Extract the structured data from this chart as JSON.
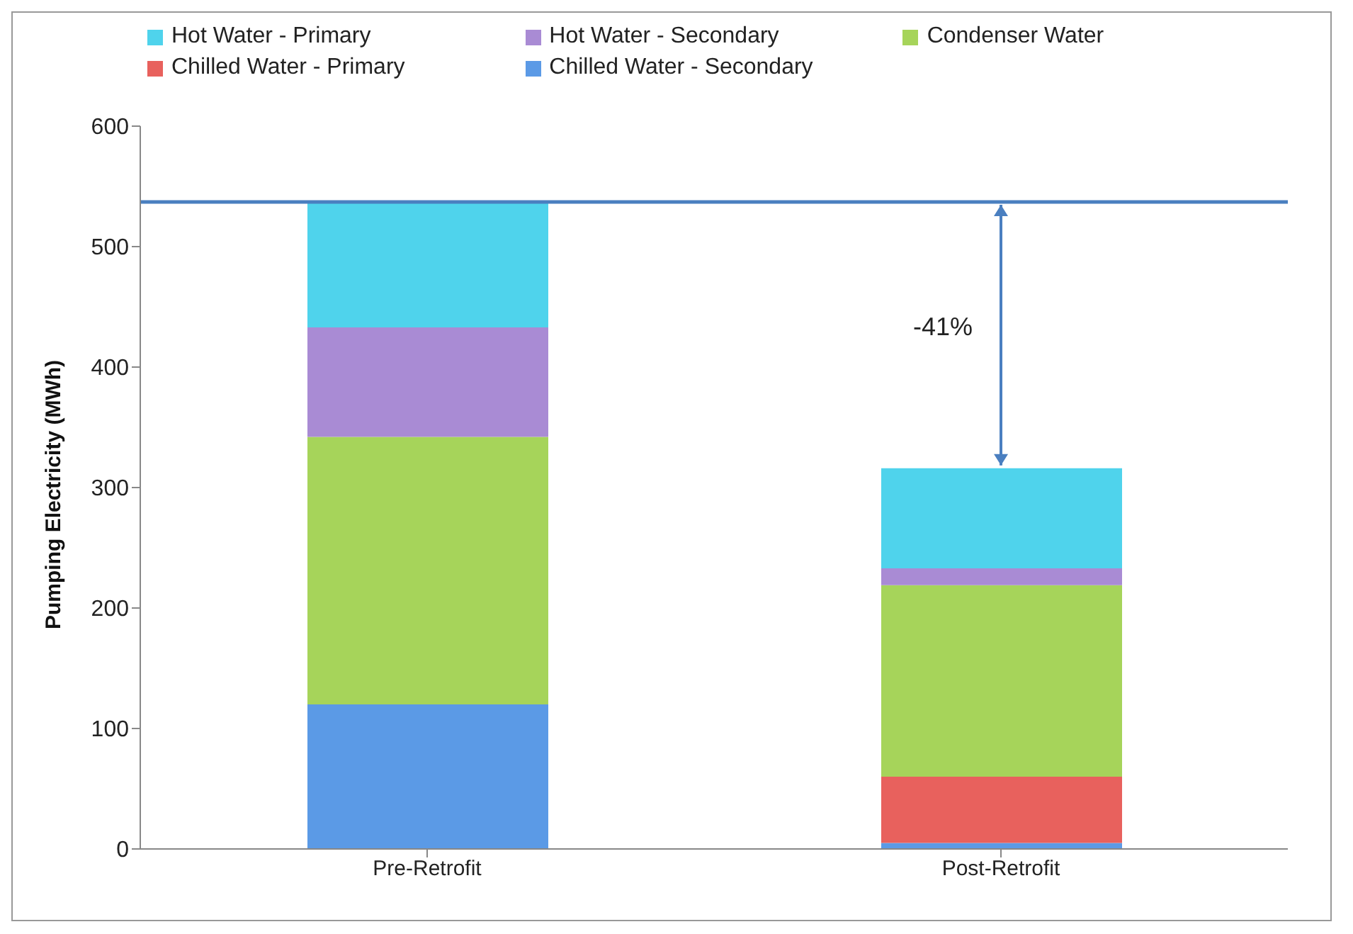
{
  "chart_data": {
    "type": "bar",
    "stacked": true,
    "ylabel": "Pumping Electricity (MWh)",
    "categories": [
      "Pre-Retrofit",
      "Post-Retrofit"
    ],
    "series": [
      {
        "name": "Chilled Water - Secondary",
        "color": "#5b9ae6",
        "values": [
          120,
          5
        ]
      },
      {
        "name": "Chilled Water - Primary",
        "color": "#e8615d",
        "values": [
          0,
          55
        ]
      },
      {
        "name": "Condenser Water",
        "color": "#a6d45a",
        "values": [
          222,
          159
        ]
      },
      {
        "name": "Hot Water - Secondary",
        "color": "#a98bd4",
        "values": [
          91,
          14
        ]
      },
      {
        "name": "Hot Water - Primary",
        "color": "#4fd3ec",
        "values": [
          105,
          83
        ]
      }
    ],
    "ylim": [
      0,
      600
    ],
    "yticks": [
      0,
      100,
      200,
      300,
      400,
      500,
      600
    ],
    "grid": false,
    "legend": "top",
    "ref_lines": [
      {
        "axis": "y",
        "value": 537,
        "color": "#4a7fc0"
      }
    ],
    "annotations": [
      "-41%"
    ]
  }
}
